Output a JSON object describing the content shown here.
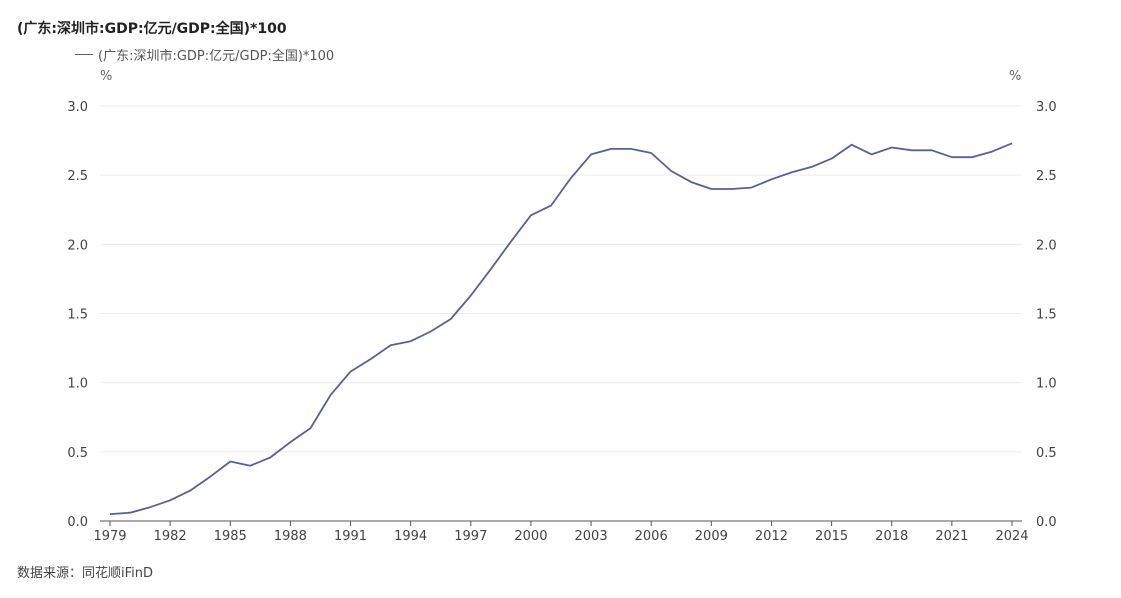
{
  "chart_data": {
    "type": "line",
    "title": "(广东:深圳市:GDP:亿元/GDP:全国)*100",
    "y_unit_left": "%",
    "y_unit_right": "%",
    "ylim": [
      0,
      3.0
    ],
    "y_ticks": [
      "0.0",
      "0.5",
      "1.0",
      "1.5",
      "2.0",
      "2.5",
      "3.0"
    ],
    "x_ticks": [
      "1979",
      "1982",
      "1985",
      "1988",
      "1991",
      "1994",
      "1997",
      "2000",
      "2003",
      "2006",
      "2009",
      "2012",
      "2015",
      "2018",
      "2021",
      "2024"
    ],
    "grid": true,
    "legend_position": "top-left",
    "series": [
      {
        "name": "(广东:深圳市:GDP:亿元/GDP:全国)*100",
        "color": "#5a5f96",
        "x": [
          1979,
          1980,
          1981,
          1982,
          1983,
          1984,
          1985,
          1986,
          1987,
          1988,
          1989,
          1990,
          1991,
          1992,
          1993,
          1994,
          1995,
          1996,
          1997,
          1998,
          1999,
          2000,
          2001,
          2002,
          2003,
          2004,
          2005,
          2006,
          2007,
          2008,
          2009,
          2010,
          2011,
          2012,
          2013,
          2014,
          2015,
          2016,
          2017,
          2018,
          2019,
          2020,
          2021,
          2022,
          2023,
          2024
        ],
        "values": [
          0.05,
          0.06,
          0.1,
          0.15,
          0.22,
          0.32,
          0.43,
          0.4,
          0.46,
          0.57,
          0.67,
          0.91,
          1.08,
          1.17,
          1.27,
          1.3,
          1.37,
          1.46,
          1.63,
          1.82,
          2.02,
          2.21,
          2.28,
          2.48,
          2.65,
          2.69,
          2.69,
          2.66,
          2.53,
          2.45,
          2.4,
          2.4,
          2.41,
          2.47,
          2.52,
          2.56,
          2.62,
          2.72,
          2.65,
          2.7,
          2.68,
          2.68,
          2.63,
          2.63,
          2.67,
          2.73
        ]
      }
    ]
  },
  "source": "数据来源：同花顺iFinD"
}
